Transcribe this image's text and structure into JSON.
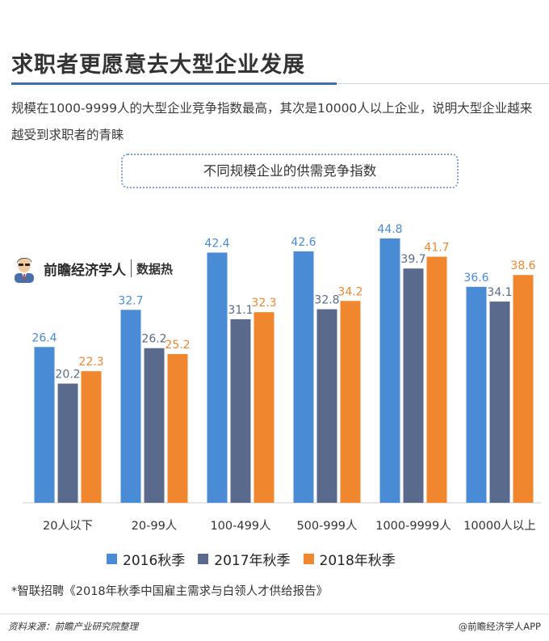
{
  "header": {
    "title": "求职者更愿意去大型企业发展",
    "subtitle": "规模在1000-9999人的大型企业竞争指数最高，其次是10000人以上企业，说明大型企业越来越受到求职者的青睐"
  },
  "brand": {
    "name": "前瞻经济学人",
    "tag": "数据热"
  },
  "note": "*智联招聘《2018年秋季中国雇主需求与白领人才供给报告》",
  "footer": {
    "source": "资料来源：前瞻产业研究院整理",
    "app": "@前瞻经济学人APP"
  },
  "colors": {
    "accent": "#3a6fb0",
    "series_2016": "#4a8bd6",
    "series_2017": "#5a6a8c",
    "series_2018": "#f0862e"
  },
  "chart_data": {
    "type": "bar",
    "title": "不同规模企业的供需竞争指数",
    "categories": [
      "20人以下",
      "20-99人",
      "100-499人",
      "500-999人",
      "1000-9999人",
      "10000人以上"
    ],
    "series": [
      {
        "name": "2016秋季",
        "values": [
          26.4,
          32.7,
          42.4,
          42.6,
          44.8,
          36.6
        ],
        "color": "#4a8bd6"
      },
      {
        "name": "2017年秋季",
        "values": [
          20.2,
          26.2,
          31.1,
          32.8,
          39.7,
          34.1
        ],
        "color": "#5a6a8c"
      },
      {
        "name": "2018年秋季",
        "values": [
          22.3,
          25.2,
          32.3,
          34.2,
          41.7,
          38.6
        ],
        "color": "#f0862e"
      }
    ],
    "ylim": [
      0,
      50
    ],
    "grid": false,
    "legend": "bottom"
  }
}
